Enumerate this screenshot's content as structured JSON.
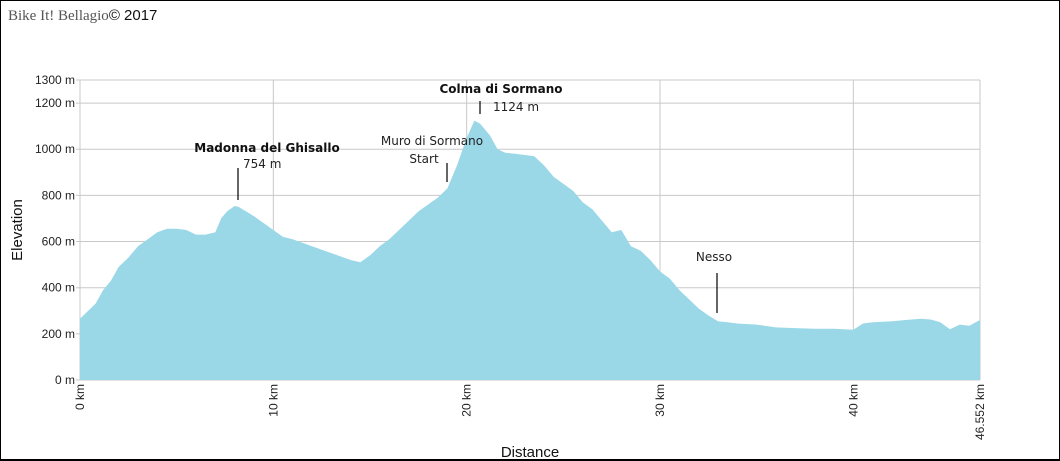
{
  "header": {
    "brand": "Bike It! Bellagio",
    "copyright": "© 2017"
  },
  "chart_data": {
    "type": "area",
    "title": "",
    "xlabel": "Distance",
    "ylabel": "Elevation",
    "xlim": [
      0,
      46.552
    ],
    "ylim": [
      0,
      1300
    ],
    "grid": true,
    "fill_color": "#9ad8e8",
    "grid_color": "#c8c8c8",
    "y_ticks": [
      {
        "value": 0,
        "label": "0 m"
      },
      {
        "value": 200,
        "label": "200 m"
      },
      {
        "value": 400,
        "label": "400 m"
      },
      {
        "value": 600,
        "label": "600 m"
      },
      {
        "value": 800,
        "label": "800 m"
      },
      {
        "value": 1000,
        "label": "1000 m"
      },
      {
        "value": 1200,
        "label": "1200 m"
      },
      {
        "value": 1300,
        "label": "1300 m"
      }
    ],
    "x_ticks": [
      {
        "value": 0,
        "label": "0 km"
      },
      {
        "value": 10,
        "label": "10 km"
      },
      {
        "value": 20,
        "label": "20 km"
      },
      {
        "value": 30,
        "label": "30 km"
      },
      {
        "value": 40,
        "label": "40 km"
      },
      {
        "value": 46.552,
        "label": "46.552 km"
      }
    ],
    "x": [
      0,
      0.3,
      0.8,
      1.2,
      1.6,
      2.0,
      2.5,
      3.0,
      3.5,
      4.0,
      4.5,
      5.0,
      5.5,
      6.0,
      6.5,
      7.0,
      7.3,
      7.6,
      8.0,
      8.2,
      8.6,
      9.0,
      9.5,
      10.0,
      10.5,
      11.0,
      12.0,
      13.0,
      14.0,
      14.5,
      15.0,
      15.5,
      16.0,
      16.5,
      17.0,
      17.5,
      18.0,
      18.5,
      19.0,
      19.5,
      20.0,
      20.4,
      20.7,
      21.2,
      21.6,
      22.0,
      22.5,
      23.0,
      23.5,
      24.0,
      24.5,
      25.0,
      25.5,
      26.0,
      26.5,
      27.0,
      27.5,
      28.0,
      28.5,
      29.0,
      29.5,
      30.0,
      30.5,
      31.0,
      31.5,
      32.0,
      32.5,
      33.0,
      33.5,
      34.0,
      35.0,
      36.0,
      37.0,
      38.0,
      39.0,
      40.0,
      40.5,
      41.0,
      42.0,
      43.0,
      43.5,
      44.0,
      44.5,
      45.0,
      45.5,
      46.0,
      46.552
    ],
    "values": [
      265,
      290,
      330,
      390,
      430,
      490,
      530,
      580,
      610,
      640,
      655,
      655,
      650,
      630,
      630,
      640,
      700,
      730,
      754,
      750,
      730,
      710,
      680,
      650,
      620,
      610,
      580,
      550,
      520,
      510,
      540,
      580,
      610,
      650,
      690,
      730,
      760,
      790,
      830,
      930,
      1050,
      1124,
      1110,
      1060,
      1000,
      985,
      980,
      975,
      970,
      930,
      880,
      850,
      820,
      770,
      740,
      690,
      640,
      650,
      580,
      560,
      520,
      470,
      440,
      390,
      350,
      310,
      280,
      255,
      250,
      245,
      240,
      228,
      225,
      222,
      222,
      218,
      245,
      250,
      255,
      262,
      265,
      262,
      250,
      220,
      240,
      235,
      260
    ],
    "annotations": [
      {
        "label": "Madonna del Ghisallo",
        "sub": "754 m",
        "x": 8.0,
        "elev": 754,
        "bold": true
      },
      {
        "label": "Colma di Sormano",
        "sub": "1124 m",
        "x": 20.4,
        "elev": 1124,
        "bold": true
      },
      {
        "label": "Muro di Sormano",
        "sub": "Start",
        "x": 19.0,
        "elev": 830,
        "bold": false
      },
      {
        "label": "Nesso",
        "sub": "",
        "x": 32.9,
        "elev": 255,
        "bold": false
      }
    ]
  }
}
